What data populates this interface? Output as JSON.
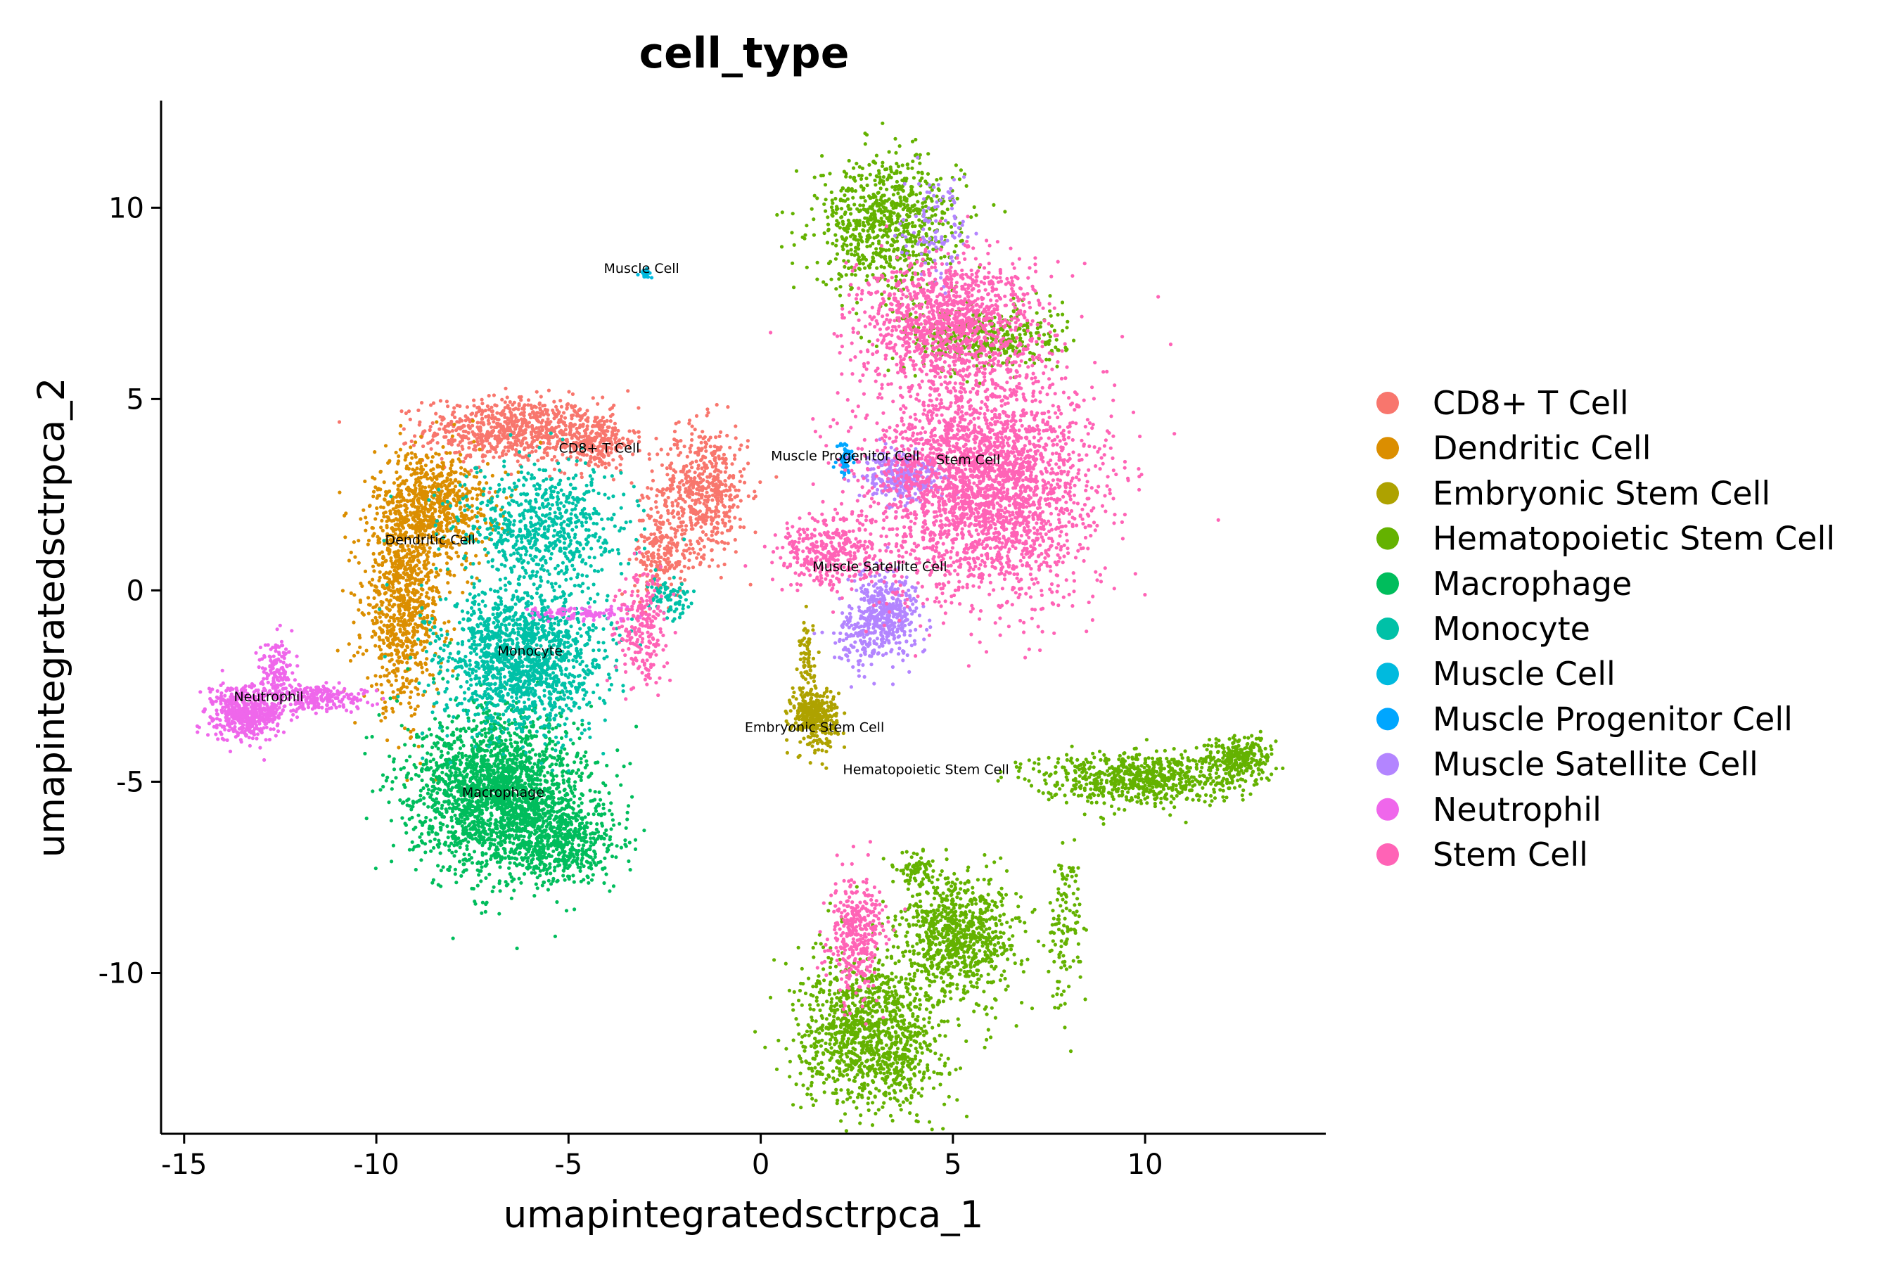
{
  "chart_data": {
    "type": "scatter",
    "title": "cell_type",
    "xlabel": "umapintegratedsctrpca_1",
    "ylabel": "umapintegratedsctrpca_2",
    "xlim": [
      -15.6,
      14.7
    ],
    "ylim": [
      -14.2,
      12.8
    ],
    "xticks": [
      -15,
      -10,
      -5,
      0,
      5,
      10
    ],
    "yticks": [
      -10,
      -5,
      0,
      5,
      10
    ],
    "xtick_labels": [
      "-15",
      "-10",
      "-5",
      "0",
      "5",
      "10"
    ],
    "ytick_labels": [
      "-10",
      "-5",
      "0",
      "5",
      "10"
    ],
    "grid": false,
    "legend_position": "right",
    "series": [
      {
        "name": "CD8+ T Cell",
        "color": "#F8766D",
        "label_pos": [
          -4.2,
          3.6
        ],
        "regions": [
          {
            "cx": -6.5,
            "cy": 4.2,
            "sx": 1.3,
            "sy": 0.5,
            "n": 700
          },
          {
            "cx": -4.3,
            "cy": 3.9,
            "sx": 0.6,
            "sy": 0.45,
            "n": 250
          },
          {
            "cx": -1.5,
            "cy": 2.6,
            "sx": 0.7,
            "sy": 1.0,
            "n": 550
          },
          {
            "cx": -2.6,
            "cy": 1.0,
            "sx": 0.4,
            "sy": 0.7,
            "n": 200
          }
        ]
      },
      {
        "name": "Dendritic Cell",
        "color": "#DB8E00",
        "label_pos": [
          -8.6,
          1.2
        ],
        "regions": [
          {
            "cx": -8.5,
            "cy": 2.2,
            "sx": 0.9,
            "sy": 0.9,
            "n": 700
          },
          {
            "cx": -9.3,
            "cy": -0.3,
            "sx": 0.6,
            "sy": 1.6,
            "n": 900
          }
        ]
      },
      {
        "name": "Embryonic Stem Cell",
        "color": "#AEA200",
        "label_pos": [
          1.4,
          -3.7
        ],
        "regions": [
          {
            "cx": 1.4,
            "cy": -3.3,
            "sx": 0.35,
            "sy": 0.45,
            "n": 350
          },
          {
            "cx": 1.2,
            "cy": -1.8,
            "sx": 0.12,
            "sy": 0.6,
            "n": 70
          }
        ]
      },
      {
        "name": "Hematopoietic Stem Cell",
        "color": "#64B200",
        "label_pos": [
          4.3,
          -4.8
        ],
        "regions": [
          {
            "cx": 3.3,
            "cy": 9.6,
            "sx": 1.1,
            "sy": 1.0,
            "n": 800
          },
          {
            "cx": 5.8,
            "cy": 6.6,
            "sx": 1.2,
            "sy": 0.5,
            "n": 400
          },
          {
            "cx": 9.8,
            "cy": -4.9,
            "sx": 1.5,
            "sy": 0.4,
            "n": 700
          },
          {
            "cx": 12.4,
            "cy": -4.4,
            "sx": 0.5,
            "sy": 0.35,
            "n": 250
          },
          {
            "cx": 2.9,
            "cy": -11.6,
            "sx": 1.1,
            "sy": 1.2,
            "n": 1200
          },
          {
            "cx": 5.2,
            "cy": -9.0,
            "sx": 0.9,
            "sy": 0.9,
            "n": 800
          },
          {
            "cx": 7.9,
            "cy": -8.8,
            "sx": 0.25,
            "sy": 1.3,
            "n": 120
          },
          {
            "cx": 4.0,
            "cy": -7.3,
            "sx": 0.35,
            "sy": 0.25,
            "n": 80
          }
        ]
      },
      {
        "name": "Macrophage",
        "color": "#00BD5C",
        "label_pos": [
          -6.7,
          -5.4
        ],
        "regions": [
          {
            "cx": -6.8,
            "cy": -5.3,
            "sx": 1.3,
            "sy": 1.2,
            "n": 2200
          },
          {
            "cx": -5.2,
            "cy": -6.6,
            "sx": 0.9,
            "sy": 0.6,
            "n": 500
          }
        ]
      },
      {
        "name": "Monocyte",
        "color": "#00C1A7",
        "label_pos": [
          -6.0,
          -1.7
        ],
        "regions": [
          {
            "cx": -6.2,
            "cy": -1.8,
            "sx": 1.2,
            "sy": 1.1,
            "n": 1500
          },
          {
            "cx": -5.7,
            "cy": 1.6,
            "sx": 1.3,
            "sy": 1.0,
            "n": 700
          },
          {
            "cx": -2.4,
            "cy": -0.2,
            "sx": 0.35,
            "sy": 0.3,
            "n": 80
          }
        ]
      },
      {
        "name": "Muscle Cell",
        "color": "#00BADE",
        "label_pos": [
          -3.1,
          8.3
        ],
        "regions": [
          {
            "cx": -3.0,
            "cy": 8.3,
            "sx": 0.08,
            "sy": 0.1,
            "n": 22
          }
        ]
      },
      {
        "name": "Muscle Progenitor Cell",
        "color": "#00A6FF",
        "label_pos": [
          2.2,
          3.4
        ],
        "regions": [
          {
            "cx": 2.2,
            "cy": 3.4,
            "sx": 0.12,
            "sy": 0.25,
            "n": 60
          }
        ]
      },
      {
        "name": "Muscle Satellite Cell",
        "color": "#B385FF",
        "label_pos": [
          3.1,
          0.5
        ],
        "regions": [
          {
            "cx": 3.3,
            "cy": -0.6,
            "sx": 0.5,
            "sy": 0.6,
            "n": 400
          },
          {
            "cx": 3.7,
            "cy": 3.0,
            "sx": 0.6,
            "sy": 0.4,
            "n": 300
          },
          {
            "cx": 2.6,
            "cy": -1.3,
            "sx": 0.4,
            "sy": 0.5,
            "n": 120
          },
          {
            "cx": 4.5,
            "cy": 9.5,
            "sx": 0.5,
            "sy": 0.7,
            "n": 100
          }
        ]
      },
      {
        "name": "Neutrophil",
        "color": "#EF67EB",
        "label_pos": [
          -12.8,
          -2.9
        ],
        "regions": [
          {
            "cx": -13.4,
            "cy": -3.2,
            "sx": 0.55,
            "sy": 0.4,
            "n": 550
          },
          {
            "cx": -12.6,
            "cy": -2.1,
            "sx": 0.25,
            "sy": 0.5,
            "n": 150
          },
          {
            "cx": -11.4,
            "cy": -2.8,
            "sx": 0.7,
            "sy": 0.2,
            "n": 200
          },
          {
            "cx": -4.7,
            "cy": -0.6,
            "sx": 0.9,
            "sy": 0.12,
            "n": 100
          }
        ]
      },
      {
        "name": "Stem Cell",
        "color": "#FF63B6",
        "label_pos": [
          5.4,
          3.3
        ],
        "regions": [
          {
            "cx": 5.8,
            "cy": 2.8,
            "sx": 1.7,
            "sy": 1.8,
            "n": 2800
          },
          {
            "cx": 4.8,
            "cy": 7.0,
            "sx": 1.3,
            "sy": 1.0,
            "n": 1200
          },
          {
            "cx": 1.8,
            "cy": 1.0,
            "sx": 0.8,
            "sy": 0.6,
            "n": 350
          },
          {
            "cx": 2.5,
            "cy": -9.0,
            "sx": 0.4,
            "sy": 0.9,
            "n": 350
          },
          {
            "cx": -3.1,
            "cy": -1.0,
            "sx": 0.35,
            "sy": 0.9,
            "n": 220
          }
        ]
      }
    ]
  }
}
